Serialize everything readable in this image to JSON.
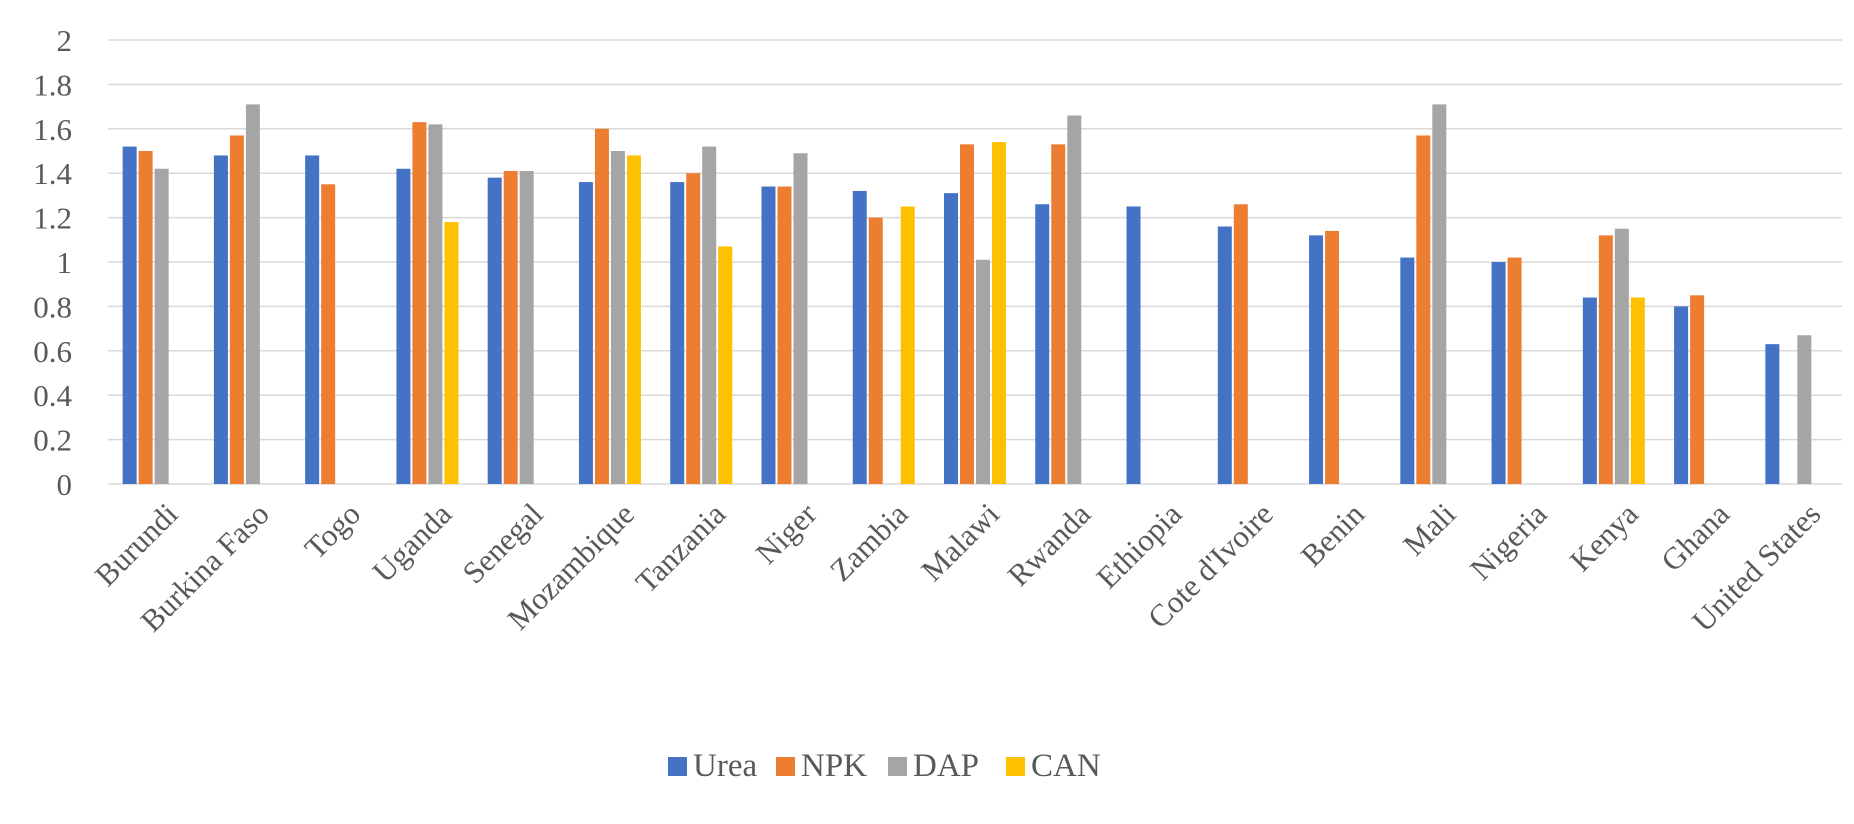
{
  "chart_data": {
    "type": "bar",
    "title": "",
    "xlabel": "",
    "ylabel": "",
    "ylim": [
      0,
      2
    ],
    "yticks": [
      "0",
      "0.2",
      "0.4",
      "0.6",
      "0.8",
      "1",
      "1.2",
      "1.4",
      "1.6",
      "1.8",
      "2"
    ],
    "grid": true,
    "legend_position": "bottom",
    "categories": [
      "Burundi",
      "Burkina Faso",
      "Togo",
      "Uganda",
      "Senegal",
      "Mozambique",
      "Tanzania",
      "Niger",
      "Zambia",
      "Malawi",
      "Rwanda",
      "Ethiopia",
      "Cote d'Ivoire",
      "Benin",
      "Mali",
      "Nigeria",
      "Kenya",
      "Ghana",
      "United States"
    ],
    "series": [
      {
        "name": "Urea",
        "color": "#4472c4",
        "values": [
          1.52,
          1.48,
          1.48,
          1.42,
          1.38,
          1.36,
          1.36,
          1.34,
          1.32,
          1.31,
          1.26,
          1.25,
          1.16,
          1.12,
          1.02,
          1.0,
          0.84,
          0.8,
          0.63
        ]
      },
      {
        "name": "NPK",
        "color": "#ed7d31",
        "values": [
          1.5,
          1.57,
          1.35,
          1.63,
          1.41,
          1.6,
          1.4,
          1.34,
          1.2,
          1.53,
          1.53,
          null,
          1.26,
          1.14,
          1.57,
          1.02,
          1.12,
          0.85,
          null
        ]
      },
      {
        "name": "DAP",
        "color": "#a5a5a5",
        "values": [
          1.42,
          1.71,
          null,
          1.62,
          1.41,
          1.5,
          1.52,
          1.49,
          null,
          1.01,
          1.66,
          null,
          null,
          null,
          1.71,
          null,
          1.15,
          null,
          0.67
        ]
      },
      {
        "name": "CAN",
        "color": "#ffc000",
        "values": [
          null,
          null,
          null,
          1.18,
          null,
          1.48,
          1.07,
          null,
          1.25,
          1.54,
          null,
          null,
          null,
          null,
          null,
          null,
          0.84,
          null,
          null
        ]
      }
    ]
  }
}
